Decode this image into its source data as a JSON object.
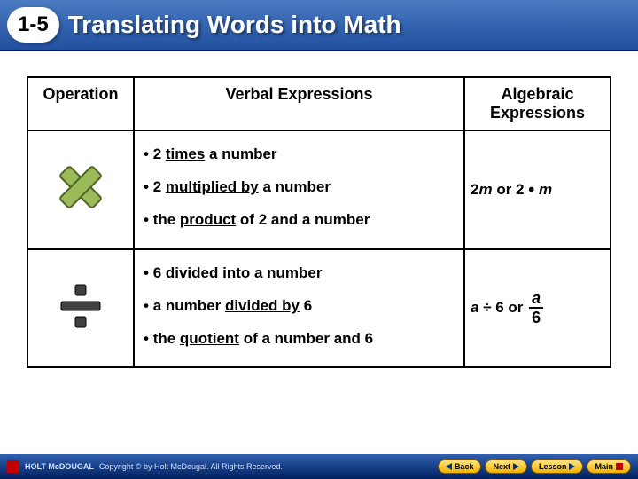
{
  "header": {
    "lesson_number": "1-5",
    "title": "Translating Words into Math"
  },
  "table": {
    "headers": {
      "operation": "Operation",
      "verbal": "Verbal Expressions",
      "algebraic": "Algebraic Expressions"
    },
    "rows": [
      {
        "operation_icon": "multiply",
        "icon_fill": "#9bbb59",
        "icon_stroke": "#4f6228",
        "verbal": [
          {
            "pre": "2 ",
            "u": "times",
            "post": " a number"
          },
          {
            "pre": "2 ",
            "u": "multiplied by",
            "post": " a number"
          },
          {
            "pre": "the ",
            "u": "product",
            "post": " of 2 and a number"
          }
        ],
        "algebraic_html": "<span>2<span class='ital'>m</span> or 2 <span class='dot-op'>•</span> <span class='ital'>m</span></span>"
      },
      {
        "operation_icon": "divide",
        "icon_fill": "#404040",
        "icon_stroke": "#000000",
        "verbal": [
          {
            "pre": "6 ",
            "u": "divided into",
            "post": " a number"
          },
          {
            "pre": "a number ",
            "u": "divided by",
            "post": " 6"
          },
          {
            "pre": "the ",
            "u": "quotient",
            "post": " of a number and 6"
          }
        ],
        "algebraic_html": "<span><span class='ital'>a</span> ÷ 6 or <span class='frac'><span class='num ital'>a</span><span class='den'>6</span></span></span>"
      }
    ]
  },
  "footer": {
    "brand": "HOLT McDOUGAL",
    "copyright": "Copyright © by Holt McDougal. All Rights Reserved.",
    "buttons": {
      "back": "Back",
      "next": "Next",
      "lesson": "Lesson",
      "main": "Main"
    }
  },
  "colors": {
    "header_grad_top": "#4a7ac0",
    "header_grad_bottom": "#2050a0",
    "footer_grad_top": "#3060b0",
    "footer_grad_bottom": "#002060",
    "button_bg_top": "#ffe680",
    "button_bg_bottom": "#f0b000"
  }
}
